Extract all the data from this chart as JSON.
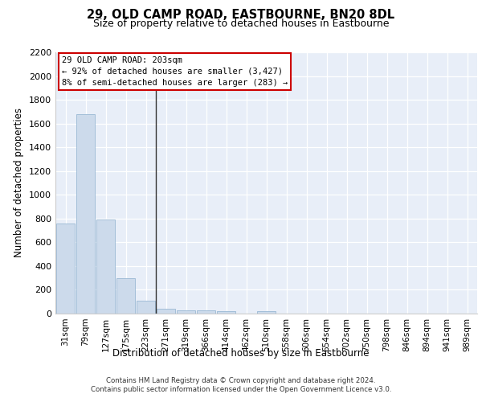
{
  "title": "29, OLD CAMP ROAD, EASTBOURNE, BN20 8DL",
  "subtitle": "Size of property relative to detached houses in Eastbourne",
  "xlabel": "Distribution of detached houses by size in Eastbourne",
  "ylabel": "Number of detached properties",
  "categories": [
    "31sqm",
    "79sqm",
    "127sqm",
    "175sqm",
    "223sqm",
    "271sqm",
    "319sqm",
    "366sqm",
    "414sqm",
    "462sqm",
    "510sqm",
    "558sqm",
    "606sqm",
    "654sqm",
    "702sqm",
    "750sqm",
    "798sqm",
    "846sqm",
    "894sqm",
    "941sqm",
    "989sqm"
  ],
  "values": [
    760,
    1680,
    790,
    300,
    110,
    42,
    30,
    25,
    22,
    0,
    20,
    0,
    0,
    0,
    0,
    0,
    0,
    0,
    0,
    0,
    0
  ],
  "bar_color": "#ccdaeb",
  "bar_edge_color": "#9ab8d4",
  "annotation_box_text": "29 OLD CAMP ROAD: 203sqm\n← 92% of detached houses are smaller (3,427)\n8% of semi-detached houses are larger (283) →",
  "ylim": [
    0,
    2200
  ],
  "yticks": [
    0,
    200,
    400,
    600,
    800,
    1000,
    1200,
    1400,
    1600,
    1800,
    2000,
    2200
  ],
  "plot_bg_color": "#e8eef8",
  "footer_line1": "Contains HM Land Registry data © Crown copyright and database right 2024.",
  "footer_line2": "Contains public sector information licensed under the Open Government Licence v3.0."
}
